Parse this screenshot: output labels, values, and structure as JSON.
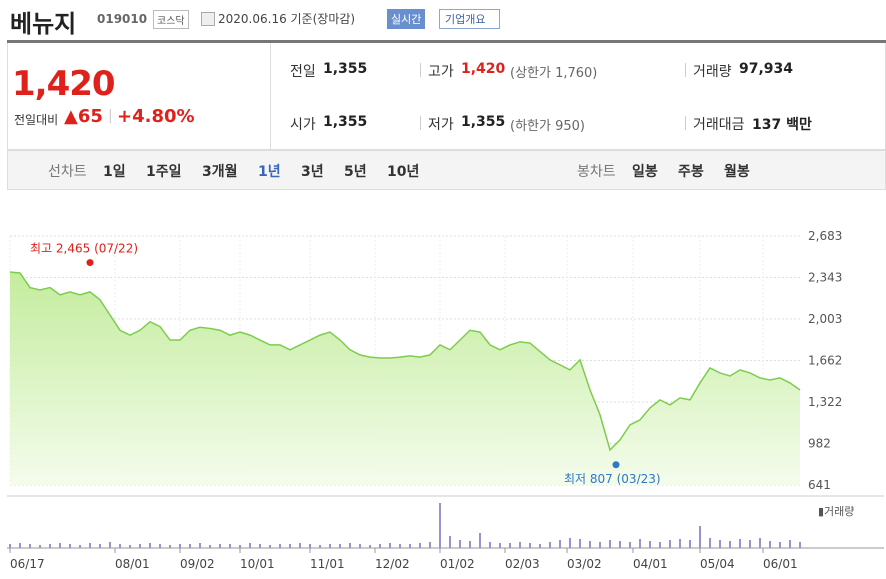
{
  "header": {
    "name": "베뉴지",
    "code": "019010",
    "market": "코스닥",
    "date": "2020.06.16 기준(장마감)",
    "realtime": "실시간",
    "company": "기업개요"
  },
  "summary": {
    "price": "1,420",
    "change_label": "전일대비",
    "change": "▲65",
    "rate": "+4.80%",
    "items": [
      {
        "label": "전일",
        "value": "1,355"
      },
      {
        "label": "고가",
        "value": "1,420",
        "note": "(상한가 1,760)"
      },
      {
        "label": "거래량",
        "value": "97,934"
      },
      {
        "label": "시가",
        "value": "1,355"
      },
      {
        "label": "저가",
        "value": "1,355",
        "note": "(하한가 950)"
      },
      {
        "label": "거래대금",
        "value": "137 백만"
      }
    ]
  },
  "tabs": {
    "line_label": "선차트",
    "periods": [
      "1일",
      "1주일",
      "3개월",
      "1년",
      "3년",
      "5년",
      "10년"
    ],
    "active": 3,
    "candle_label": "봉차트",
    "candles": [
      "일봉",
      "주봉",
      "월봉"
    ]
  },
  "chart_data": {
    "type": "line",
    "color": "#7ccd4c",
    "values": [
      2388,
      2380,
      2260,
      2240,
      2260,
      2200,
      2225,
      2200,
      2225,
      2160,
      2035,
      1910,
      1870,
      1910,
      1980,
      1940,
      1830,
      1830,
      1910,
      1935,
      1925,
      1910,
      1870,
      1895,
      1870,
      1830,
      1790,
      1790,
      1750,
      1790,
      1830,
      1870,
      1895,
      1830,
      1750,
      1708,
      1690,
      1683,
      1683,
      1690,
      1700,
      1690,
      1708,
      1790,
      1750,
      1830,
      1910,
      1895,
      1790,
      1750,
      1790,
      1815,
      1805,
      1735,
      1667,
      1626,
      1585,
      1667,
      1421,
      1216,
      929,
      1011,
      1134,
      1175,
      1273,
      1339,
      1298,
      1355,
      1339,
      1478,
      1601,
      1560,
      1535,
      1585,
      1560,
      1519,
      1502,
      1519,
      1478,
      1420
    ],
    "xlim": [
      0,
      79
    ],
    "xticks": [
      {
        "value": 0,
        "label": "06/17"
      },
      {
        "value": 10.5,
        "label": "08/01"
      },
      {
        "value": 17,
        "label": "09/02"
      },
      {
        "value": 23,
        "label": "10/01"
      },
      {
        "value": 30,
        "label": "11/01"
      },
      {
        "value": 36.5,
        "label": "12/02"
      },
      {
        "value": 43,
        "label": "01/02"
      },
      {
        "value": 49.5,
        "label": "02/03"
      },
      {
        "value": 55.7,
        "label": "03/02"
      },
      {
        "value": 62.3,
        "label": "04/01"
      },
      {
        "value": 69,
        "label": "05/04"
      },
      {
        "value": 75.3,
        "label": "06/01"
      }
    ],
    "ylim": [
      641,
      2683
    ],
    "yticks": [
      641,
      982,
      {
        "value": 1322,
        "label": "1,322"
      },
      {
        "value": 1662,
        "label": "1,662"
      },
      {
        "value": 2003,
        "label": "2,003"
      },
      {
        "value": 2343,
        "label": "2,343"
      },
      {
        "value": 2683,
        "label": "2,683"
      }
    ],
    "grid": true,
    "annotations": [
      {
        "text": "최고 2,465 (07/22)",
        "x": 8,
        "y": 2465,
        "color": "#e0201b"
      },
      {
        "text": "최저 807 (03/23)",
        "x": 60.6,
        "y": 807,
        "color": "#2f77c8"
      }
    ],
    "volume": {
      "label": "▮거래량",
      "color": "#9d8fd0",
      "values": [
        4,
        5,
        4,
        3,
        4,
        5,
        4,
        3,
        5,
        4,
        6,
        4,
        3,
        4,
        5,
        4,
        3,
        4,
        4,
        5,
        3,
        4,
        4,
        3,
        5,
        4,
        3,
        4,
        4,
        5,
        4,
        3,
        4,
        4,
        5,
        4,
        3,
        4,
        5,
        4,
        4,
        5,
        6,
        45,
        12,
        8,
        7,
        15,
        6,
        5,
        5,
        6,
        5,
        4,
        6,
        8,
        10,
        9,
        7,
        6,
        8,
        7,
        6,
        9,
        7,
        6,
        8,
        9,
        8,
        22,
        10,
        8,
        7,
        9,
        8,
        10,
        7,
        6,
        8,
        6
      ]
    }
  }
}
